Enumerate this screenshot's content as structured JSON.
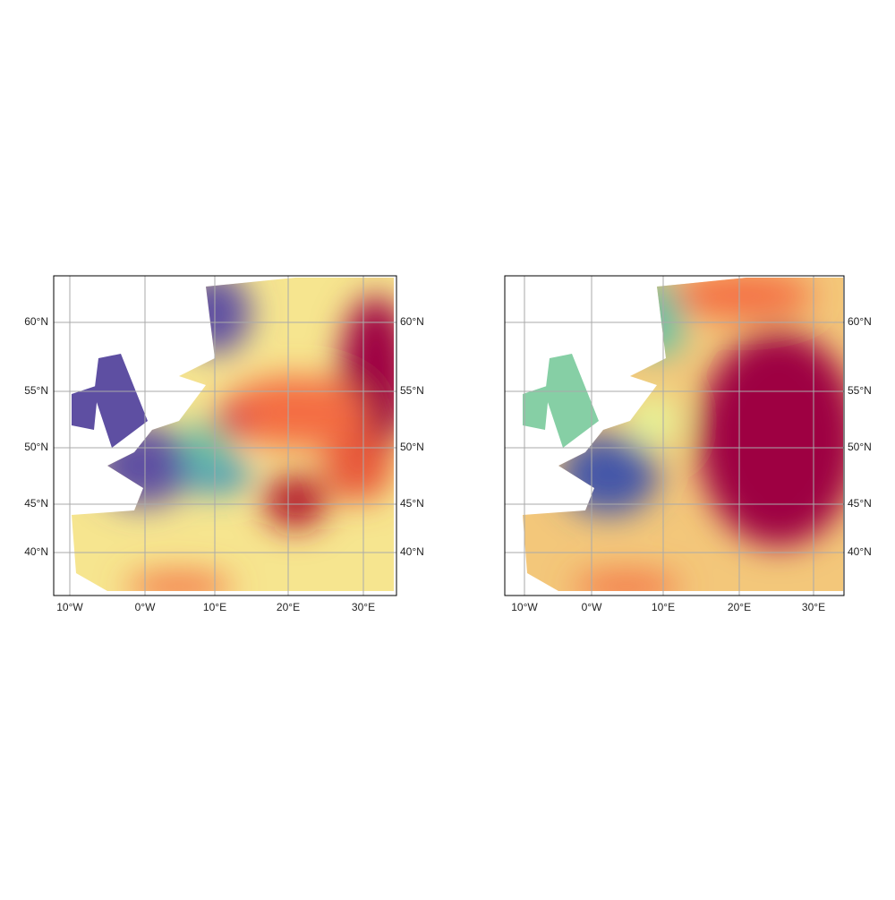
{
  "maps": [
    {
      "x_labels": [
        "10°W",
        "0°W",
        "10°E",
        "20°E",
        "30°E"
      ],
      "y_labels_left": [
        "60°N",
        "55°N",
        "50°N",
        "45°N",
        "40°N"
      ],
      "y_labels_right": [
        "60°N",
        "55°N",
        "50°N",
        "45°N",
        "40°N"
      ]
    },
    {
      "x_labels": [
        "10°W",
        "0°W",
        "10°E",
        "20°E",
        "30°E"
      ],
      "y_labels_right": [
        "60°N",
        "55°N",
        "50°N",
        "45°N",
        "40°N"
      ]
    }
  ]
}
